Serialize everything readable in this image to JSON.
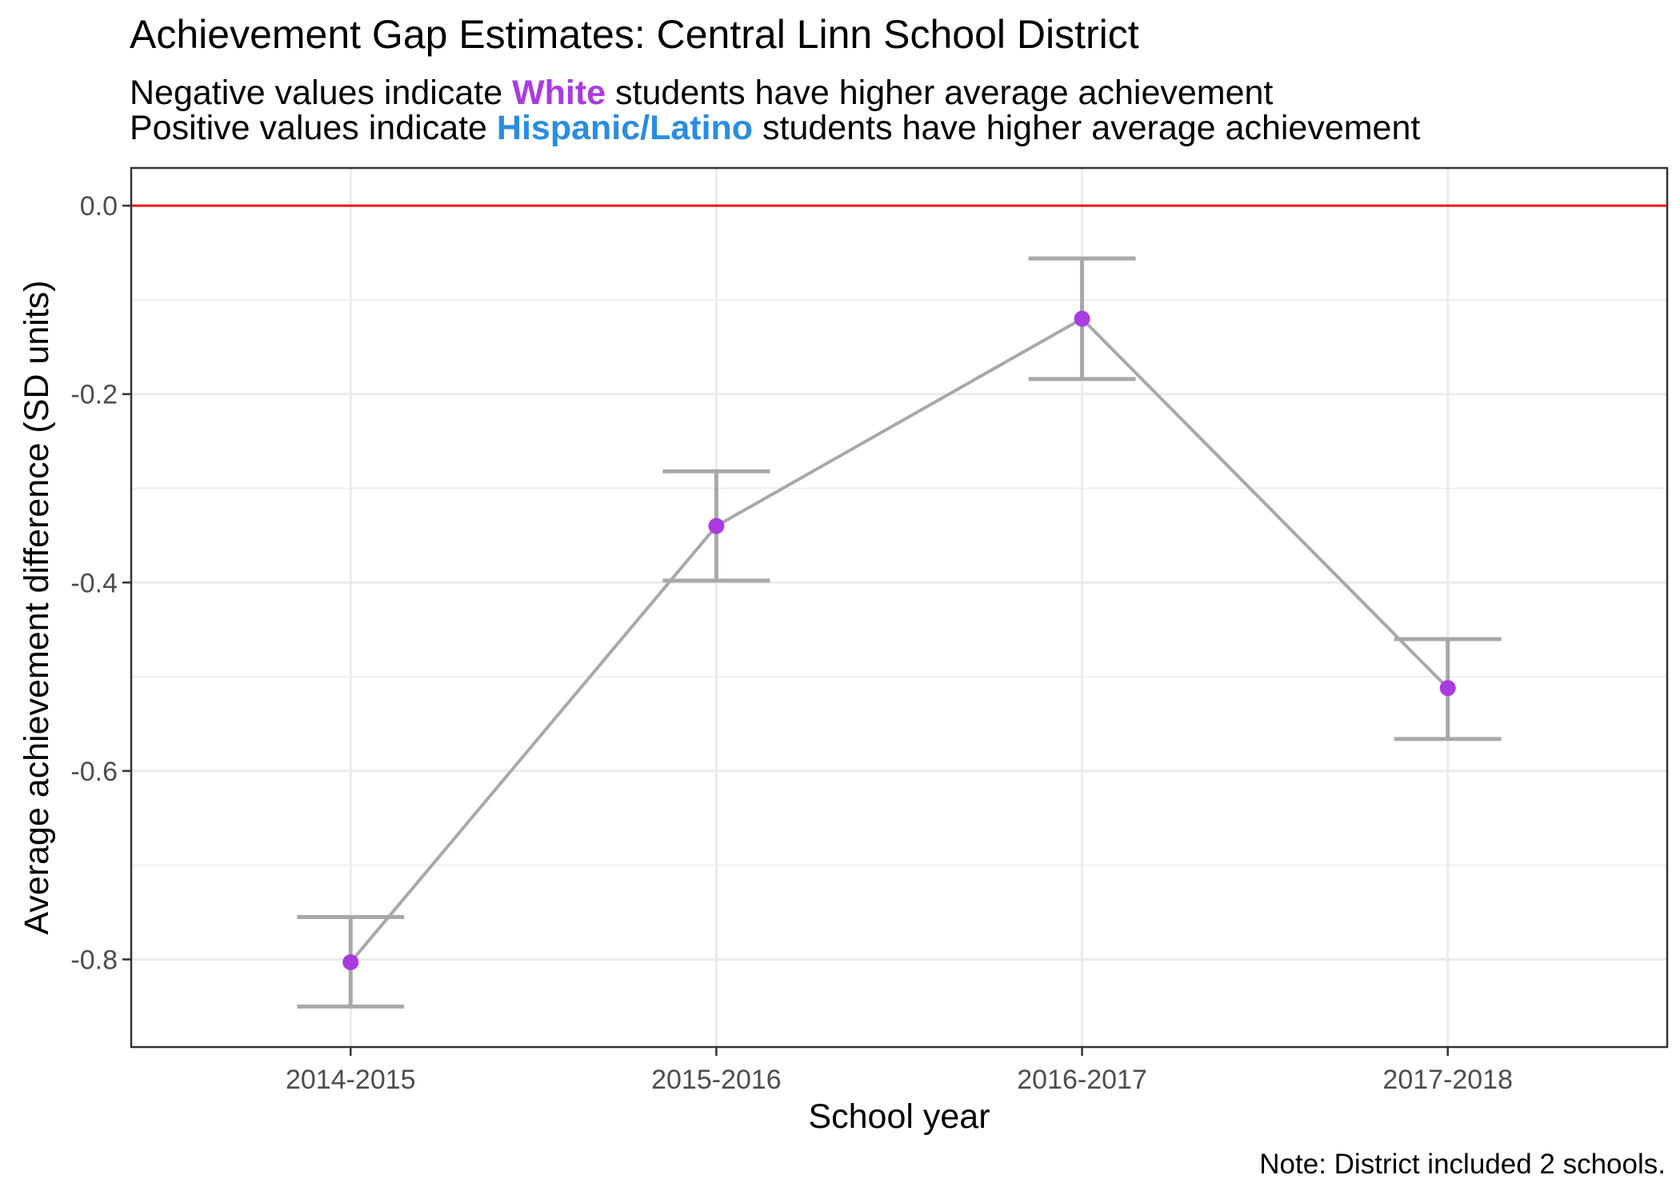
{
  "title": "Achievement Gap Estimates: Central Linn School District",
  "subtitle": {
    "line1": {
      "before": "Negative values indicate ",
      "highlight": "White",
      "after": " students have higher average achievement"
    },
    "line2": {
      "before": "Positive values indicate ",
      "highlight": "Hispanic/Latino",
      "after": " students have higher average achievement"
    }
  },
  "note": "Note: District included 2 schools.",
  "colors": {
    "white_group": "#a93be0",
    "hispanic_group": "#2b8ce0",
    "reference_line": "#ee1c1c",
    "series_line": "#a8a8a8",
    "point": "#a93be0",
    "grid": "#ebebeb",
    "axis_text": "#4d4d4d"
  },
  "chart_data": {
    "type": "line",
    "title": "Achievement Gap Estimates: Central Linn School District",
    "xlabel": "School year",
    "ylabel": "Average achievement difference (SD units)",
    "categories": [
      "2014-2015",
      "2015-2016",
      "2016-2017",
      "2017-2018"
    ],
    "values": [
      -0.803,
      -0.34,
      -0.12,
      -0.512
    ],
    "error_bars": {
      "lower": [
        -0.85,
        -0.398,
        -0.184,
        -0.566
      ],
      "upper": [
        -0.755,
        -0.282,
        -0.056,
        -0.46
      ]
    },
    "reference_line": {
      "y": 0.0
    },
    "ylim": [
      -0.893,
      0.04
    ],
    "y_ticks": [
      0.0,
      -0.2,
      -0.4,
      -0.6,
      -0.8
    ],
    "y_tick_labels": [
      "0.0",
      "-0.2",
      "-0.4",
      "-0.6",
      "-0.8"
    ],
    "grid": true,
    "legend": "none"
  }
}
